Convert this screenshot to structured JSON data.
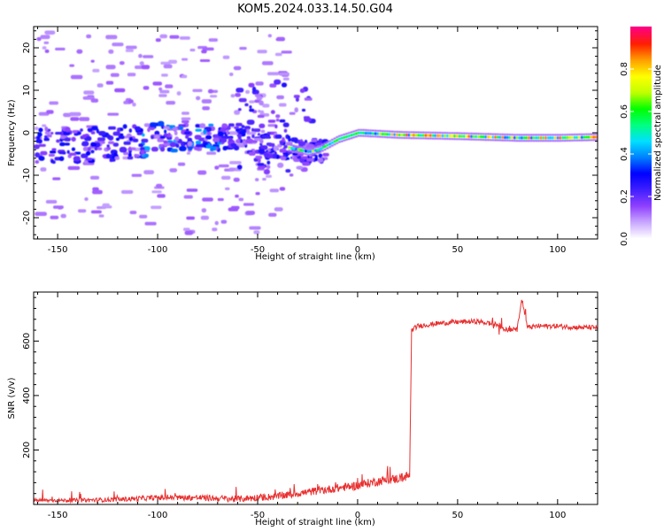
{
  "figure": {
    "title": "KOM5.2024.033.14.50.G04"
  },
  "chart_data": [
    {
      "type": "heatmap",
      "title": "KOM5.2024.033.14.50.G04",
      "xlabel": "Height of straight line (km)",
      "ylabel": "Frequency (Hz)",
      "xlim": [
        -162,
        120
      ],
      "ylim": [
        -25,
        25
      ],
      "xticks": [
        -150,
        -100,
        -50,
        0,
        50,
        100
      ],
      "yticks": [
        -20,
        -10,
        0,
        10,
        20
      ],
      "colorbar": {
        "label": "Normalized spectral amplitude",
        "range": [
          0,
          1
        ],
        "ticks": [
          0.0,
          0.2,
          0.4,
          0.6,
          0.8
        ],
        "colormap": [
          "#ffffff",
          "#c8a8ff",
          "#9040ff",
          "#4020ff",
          "#0000ff",
          "#0080ff",
          "#00e0ff",
          "#00ff80",
          "#00ff00",
          "#c0ff00",
          "#ffff00",
          "#ffa000",
          "#ff2000",
          "#ff0080"
        ]
      },
      "ridge": {
        "x": [
          -162,
          -140,
          -120,
          -100,
          -80,
          -60,
          -45,
          -35,
          -25,
          -20,
          -10,
          0,
          20,
          50,
          80,
          100,
          120
        ],
        "freq": [
          -3,
          -3,
          -2.5,
          -1.5,
          -1,
          -1,
          -3,
          -3.5,
          -4.5,
          -4,
          -1.5,
          0,
          -0.5,
          -0.8,
          -1.2,
          -1.2,
          -1
        ]
      },
      "grid": false,
      "legend": "none"
    },
    {
      "type": "line",
      "xlabel": "Height of straight line (km)",
      "ylabel": "SNR (v/v)",
      "xlim": [
        -162,
        120
      ],
      "ylim": [
        0,
        780
      ],
      "xticks": [
        -150,
        -100,
        -50,
        0,
        50,
        100
      ],
      "yticks": [
        200,
        400,
        600
      ],
      "color": "#e83030",
      "series": [
        {
          "x": [
            -162,
            -140,
            -120,
            -100,
            -80,
            -60,
            -40,
            -20,
            0,
            10,
            20,
            26,
            27,
            30,
            40,
            50,
            60,
            70,
            75,
            80,
            82,
            85,
            90,
            100,
            110,
            120
          ],
          "y": [
            15,
            15,
            18,
            25,
            25,
            20,
            30,
            50,
            70,
            85,
            95,
            105,
            640,
            655,
            665,
            670,
            672,
            660,
            640,
            650,
            760,
            650,
            655,
            655,
            650,
            650
          ]
        }
      ],
      "grid": false,
      "legend": "none"
    }
  ]
}
